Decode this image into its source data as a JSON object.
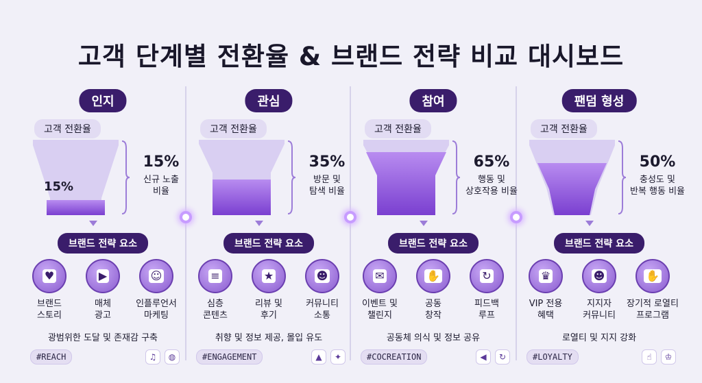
{
  "title_part1": "고객 단계별",
  "title_part2": "전환율 & 브랜드 전략 비교 대시보드",
  "stages": [
    {
      "name": "인지",
      "conv_label": "고객 전환율",
      "inner_pct": "15%",
      "pct": "15%",
      "desc_lines": [
        "신규 노출",
        "비율"
      ],
      "brand_label": "브랜드 전략 요소",
      "icons": [
        {
          "name": "story-icon",
          "glyph": "♥",
          "label_lines": [
            "브랜드",
            "스토리"
          ]
        },
        {
          "name": "media-ad-icon",
          "glyph": "▶",
          "label_lines": [
            "매체",
            "광고"
          ]
        },
        {
          "name": "influencer-icon",
          "glyph": "☺",
          "label_lines": [
            "인플루언서",
            "마케팅"
          ]
        }
      ],
      "summary": "광범위한 도달 및 존재감 구축",
      "tag": "#REACH",
      "mini": [
        "♫",
        "◍"
      ],
      "fill": 0.15
    },
    {
      "name": "관심",
      "conv_label": "고객 전환율",
      "inner_pct": "",
      "pct": "35%",
      "desc_lines": [
        "방문 및",
        "탐색 비율"
      ],
      "brand_label": "브랜드 전략 요소",
      "icons": [
        {
          "name": "content-icon",
          "glyph": "≡",
          "label_lines": [
            "심층",
            "콘텐츠"
          ]
        },
        {
          "name": "review-icon",
          "glyph": "★",
          "label_lines": [
            "리뷰 및",
            "후기"
          ]
        },
        {
          "name": "community-icon",
          "glyph": "☻",
          "label_lines": [
            "커뮤니티",
            "소통"
          ]
        }
      ],
      "summary": "취향 및 정보 제공, 몰입 유도",
      "tag": "#ENGAGEMENT",
      "mini": [
        "▲",
        "✦"
      ],
      "fill": 0.35
    },
    {
      "name": "참여",
      "conv_label": "고객 전환율",
      "inner_pct": "",
      "pct": "65%",
      "desc_lines": [
        "행동 및",
        "상호작용 비율"
      ],
      "brand_label": "브랜드 전략 요소",
      "icons": [
        {
          "name": "event-icon",
          "glyph": "✉",
          "label_lines": [
            "이벤트 및",
            "챌린지"
          ]
        },
        {
          "name": "cocreation-icon",
          "glyph": "✋",
          "label_lines": [
            "공동",
            "창작"
          ]
        },
        {
          "name": "feedback-loop-icon",
          "glyph": "↻",
          "label_lines": [
            "피드백",
            "루프"
          ]
        }
      ],
      "summary": "공동체 의식 및 정보 공유",
      "tag": "#COCREATION",
      "mini": [
        "◀",
        "↻"
      ],
      "fill": 0.65
    },
    {
      "name": "팬덤 형성",
      "conv_label": "고객 전환율",
      "inner_pct": "",
      "pct": "50%",
      "desc_lines": [
        "충성도 및",
        "반복 행동 비율"
      ],
      "brand_label": "브랜드 전략 요소",
      "icons": [
        {
          "name": "vip-icon",
          "glyph": "♛",
          "label_lines": [
            "VIP 전용",
            "혜택"
          ]
        },
        {
          "name": "supporter-community-icon",
          "glyph": "☻",
          "label_lines": [
            "지지자",
            "커뮤니티"
          ]
        },
        {
          "name": "loyalty-program-icon",
          "glyph": "✋",
          "label_lines": [
            "장기적 로열티",
            "프로그램"
          ]
        }
      ],
      "summary": "로열티 및 지지 강화",
      "tag": "#LOYALTY",
      "mini": [
        "☝",
        "♔"
      ],
      "fill": 0.5
    }
  ]
}
